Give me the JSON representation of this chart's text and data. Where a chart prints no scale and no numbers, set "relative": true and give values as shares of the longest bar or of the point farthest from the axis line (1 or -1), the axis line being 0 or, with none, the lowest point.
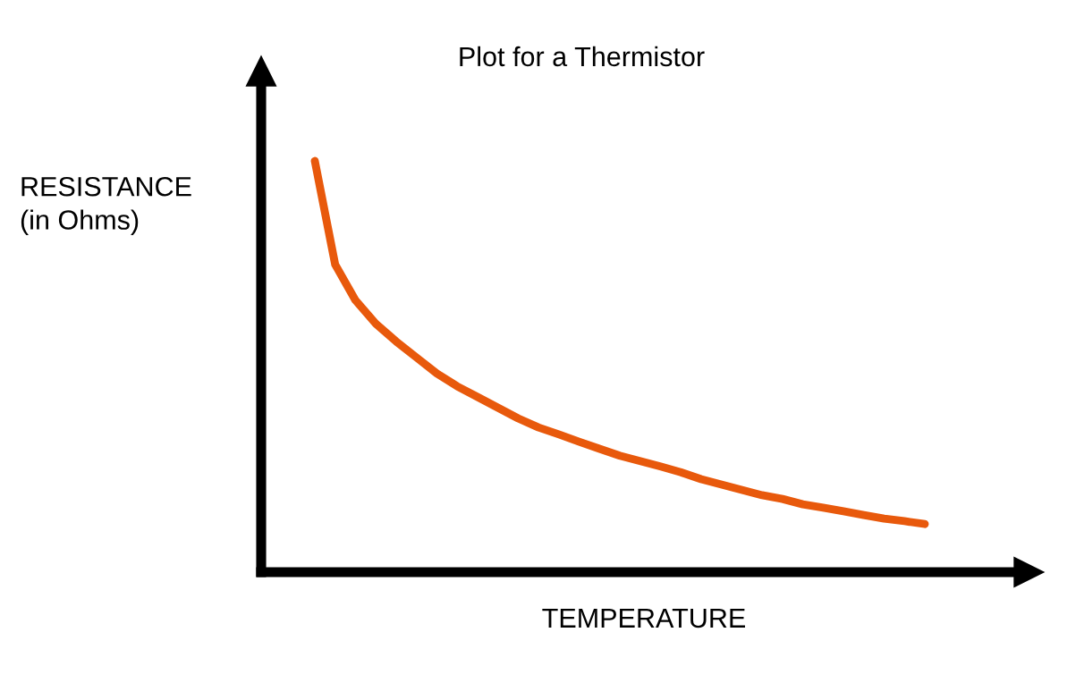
{
  "chart_data": {
    "type": "line",
    "title": "Plot for a Thermistor",
    "xlabel": "TEMPERATURE",
    "ylabel": "RESISTANCE\n(in Ohms)",
    "relative": true,
    "tick_labels": false,
    "categories": [
      null,
      null,
      null,
      null,
      null,
      null,
      null,
      null,
      null,
      null,
      null,
      null,
      null,
      null,
      null,
      null,
      null,
      null,
      null,
      null,
      null,
      null,
      null,
      null,
      null,
      null,
      null,
      null,
      null,
      null,
      null
    ],
    "series": [
      {
        "color": "#e8590c",
        "values": [
          1.0,
          0.748,
          0.661,
          0.604,
          0.561,
          0.522,
          0.483,
          0.452,
          0.426,
          0.4,
          0.374,
          0.352,
          0.335,
          0.317,
          0.3,
          0.283,
          0.27,
          0.257,
          0.243,
          0.226,
          0.213,
          0.2,
          0.187,
          0.178,
          0.165,
          0.157,
          0.148,
          0.139,
          0.13,
          0.124,
          0.117
        ]
      }
    ],
    "line_style": "solid",
    "marker": "none"
  }
}
